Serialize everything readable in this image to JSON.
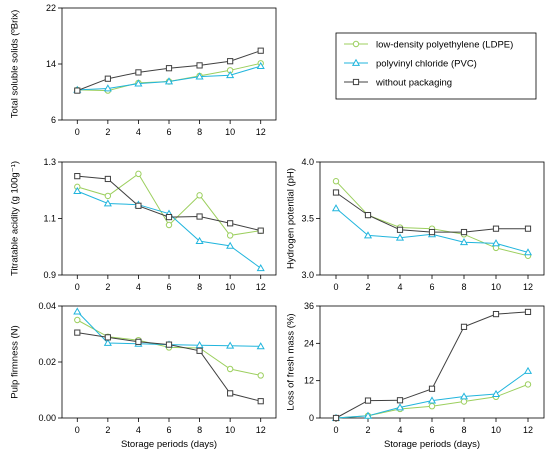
{
  "legend": {
    "items": [
      {
        "label": "low-density polyethylene (LDPE)",
        "color": "#9ccf5e",
        "marker": "circle"
      },
      {
        "label": "polyvinyl chloride (PVC)",
        "color": "#21b5dd",
        "marker": "triangle"
      },
      {
        "label": "without packaging",
        "color": "#404040",
        "marker": "square"
      }
    ]
  },
  "chart_data": [
    {
      "type": "line",
      "ylabel": "Total soluble solids (ºBrix)",
      "xlabel": "",
      "x": [
        0,
        2,
        4,
        6,
        8,
        10,
        12
      ],
      "xticks": [
        "0",
        "2",
        "4",
        "6",
        "8",
        "10",
        "12"
      ],
      "ylim": [
        6,
        22
      ],
      "yticks": [
        "6",
        "14",
        "22"
      ],
      "series": [
        {
          "name": "low-density polyethylene (LDPE)",
          "values": [
            10.3,
            10.2,
            11.3,
            11.5,
            12.3,
            13.1,
            14.1
          ]
        },
        {
          "name": "polyvinyl chloride (PVC)",
          "values": [
            10.3,
            10.5,
            11.2,
            11.5,
            12.2,
            12.4,
            13.7
          ]
        },
        {
          "name": "without packaging",
          "values": [
            10.2,
            11.9,
            12.8,
            13.4,
            13.8,
            14.4,
            15.9
          ]
        }
      ]
    },
    {
      "type": "line",
      "ylabel": "Titratable acidity (g 100g⁻¹)",
      "xlabel": "",
      "x": [
        0,
        2,
        4,
        6,
        8,
        10,
        12
      ],
      "xticks": [
        "0",
        "2",
        "4",
        "6",
        "8",
        "10",
        "12"
      ],
      "ylim": [
        0.9,
        1.3
      ],
      "yticks": [
        "0.9",
        "1.1",
        "1.3"
      ],
      "series": [
        {
          "name": "low-density polyethylene (LDPE)",
          "values": [
            1.212,
            1.18,
            1.258,
            1.077,
            1.182,
            1.04,
            1.057
          ]
        },
        {
          "name": "polyvinyl chloride (PVC)",
          "values": [
            1.197,
            1.153,
            1.149,
            1.117,
            1.02,
            1.003,
            0.924
          ]
        },
        {
          "name": "without packaging",
          "values": [
            1.25,
            1.24,
            1.145,
            1.105,
            1.107,
            1.083,
            1.057
          ]
        }
      ]
    },
    {
      "type": "line",
      "ylabel": "Hydrogen potential (pH)",
      "xlabel": "",
      "x": [
        0,
        2,
        4,
        6,
        8,
        10,
        12
      ],
      "xticks": [
        "0",
        "2",
        "4",
        "6",
        "8",
        "10",
        "12"
      ],
      "ylim": [
        3.0,
        4.0
      ],
      "yticks": [
        "3.0",
        "3.5",
        "4.0"
      ],
      "series": [
        {
          "name": "low-density polyethylene (LDPE)",
          "values": [
            3.83,
            3.53,
            3.42,
            3.41,
            3.36,
            3.24,
            3.17
          ]
        },
        {
          "name": "polyvinyl chloride (PVC)",
          "values": [
            3.59,
            3.35,
            3.33,
            3.36,
            3.29,
            3.28,
            3.2
          ]
        },
        {
          "name": "without packaging",
          "values": [
            3.73,
            3.53,
            3.4,
            3.38,
            3.38,
            3.41,
            3.41
          ]
        }
      ]
    },
    {
      "type": "line",
      "ylabel": "Pulp firmness (N)",
      "xlabel": "Storage periods (days)",
      "x": [
        0,
        2,
        4,
        6,
        8,
        10,
        12
      ],
      "xticks": [
        "0",
        "2",
        "4",
        "6",
        "8",
        "10",
        "12"
      ],
      "ylim": [
        0.0,
        0.04
      ],
      "yticks": [
        "0.00",
        "0.02",
        "0.04"
      ],
      "series": [
        {
          "name": "low-density polyethylene (LDPE)",
          "values": [
            0.035,
            0.029,
            0.0278,
            0.0252,
            0.025,
            0.0175,
            0.0152
          ]
        },
        {
          "name": "polyvinyl chloride (PVC)",
          "values": [
            0.038,
            0.0268,
            0.0265,
            0.0262,
            0.026,
            0.0258,
            0.0256
          ]
        },
        {
          "name": "without packaging",
          "values": [
            0.0305,
            0.0288,
            0.0272,
            0.0262,
            0.024,
            0.0088,
            0.006
          ]
        }
      ]
    },
    {
      "type": "line",
      "ylabel": "Loss of fresh mass (%)",
      "xlabel": "Storage periods (days)",
      "x": [
        0,
        2,
        4,
        6,
        8,
        10,
        12
      ],
      "xticks": [
        "0",
        "2",
        "4",
        "6",
        "8",
        "10",
        "12"
      ],
      "ylim": [
        0,
        36
      ],
      "yticks": [
        "0",
        "12",
        "24",
        "36"
      ],
      "series": [
        {
          "name": "low-density polyethylene (LDPE)",
          "values": [
            0,
            0.7,
            2.9,
            3.8,
            5.3,
            6.8,
            10.8
          ]
        },
        {
          "name": "polyvinyl chloride (PVC)",
          "values": [
            0,
            0.7,
            3.4,
            5.6,
            6.9,
            7.7,
            15.1
          ]
        },
        {
          "name": "without packaging",
          "values": [
            0,
            5.6,
            5.7,
            9.4,
            29.3,
            33.4,
            34.1
          ]
        }
      ]
    }
  ]
}
